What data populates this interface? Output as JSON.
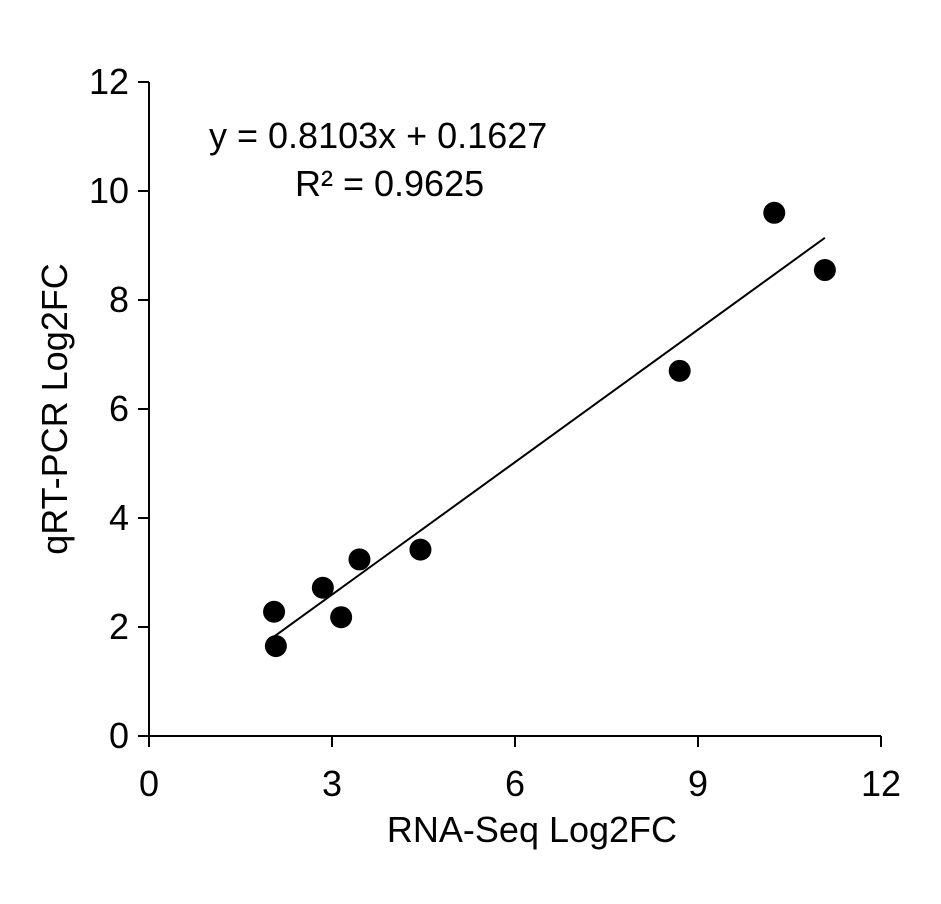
{
  "chart_data": {
    "type": "scatter",
    "xlabel": "RNA-Seq Log2FC",
    "ylabel": "qRT-PCR Log2FC",
    "xlim": [
      0,
      12
    ],
    "ylim": [
      0,
      12
    ],
    "x_ticks": [
      "0",
      "3",
      "6",
      "9",
      "12"
    ],
    "y_ticks": [
      "0",
      "2",
      "4",
      "6",
      "8",
      "10",
      "12"
    ],
    "grid": false,
    "legend": "none",
    "marker_color": "#000000",
    "points": [
      {
        "x": 2.05,
        "y": 2.28
      },
      {
        "x": 2.08,
        "y": 1.65
      },
      {
        "x": 2.85,
        "y": 2.72
      },
      {
        "x": 3.15,
        "y": 2.18
      },
      {
        "x": 3.45,
        "y": 3.24
      },
      {
        "x": 4.45,
        "y": 3.42
      },
      {
        "x": 8.7,
        "y": 6.7
      },
      {
        "x": 10.25,
        "y": 9.6
      },
      {
        "x": 11.08,
        "y": 8.55
      }
    ],
    "trendline": {
      "slope": 0.8103,
      "intercept": 0.1627,
      "x_range": [
        2.05,
        11.08
      ]
    },
    "equation_label": "y = 0.8103x + 0.1627",
    "r2_label": "R² = 0.9625"
  }
}
